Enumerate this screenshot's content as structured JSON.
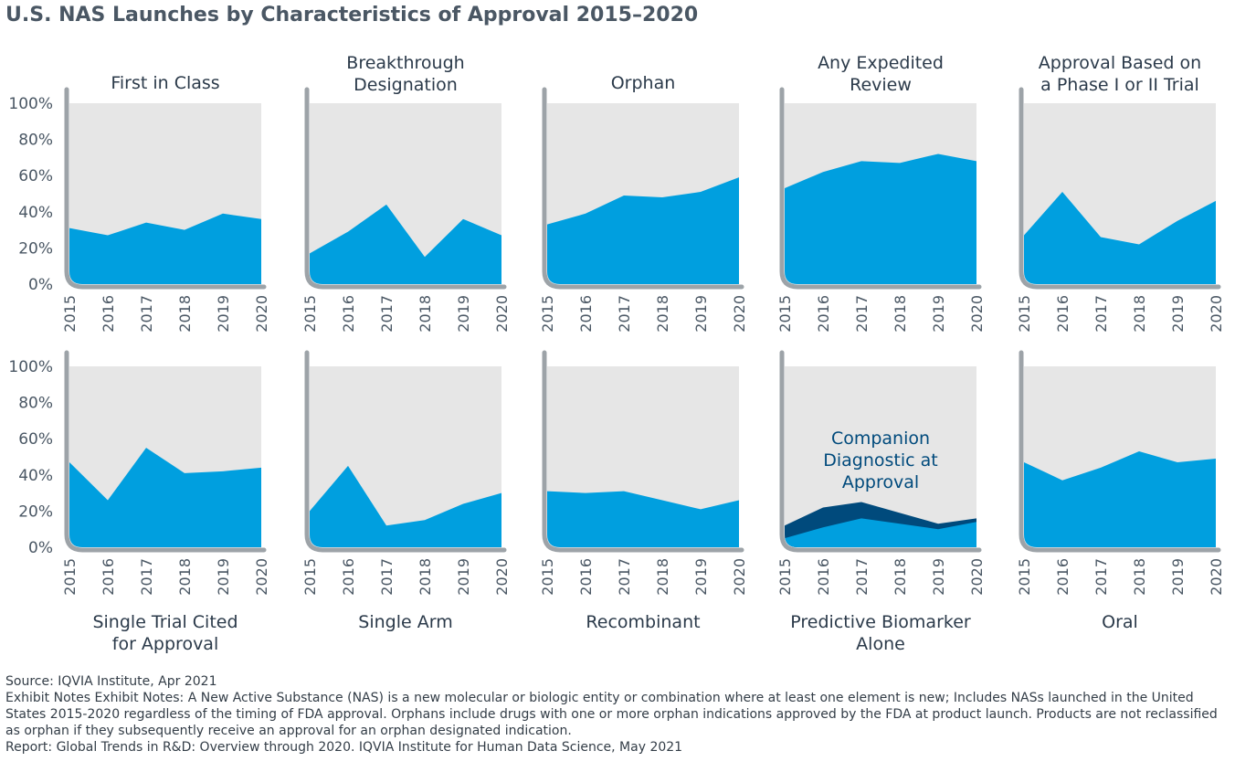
{
  "title": "U.S. NAS Launches by Characteristics of Approval 2015–2020",
  "footer": {
    "source": "Source: IQVIA Institute, Apr 2021",
    "notes": "Exhibit Notes Exhibit Notes: A New Active Substance (NAS) is a new molecular or biologic entity or combination where at least one element is new; Includes NASs launched in the United States 2015-2020 regardless of the timing of FDA approval. Orphans include drugs with one or more orphan indications approved by the FDA at product launch. Products are not reclassified as orphan if they subsequently receive an approval for an orphan designated indication.",
    "report": "Report: Global Trends in R&D: Overview through 2020. IQVIA Institute for Human Data Science, May 2021"
  },
  "colors": {
    "area": "#009fdf",
    "area_dark": "#004a7c",
    "plot_bg": "#e6e6e6",
    "axis": "#9da3a8",
    "text": "#2b3a4a"
  },
  "chart_data": [
    {
      "type": "area",
      "title": [
        "First in Class"
      ],
      "title_position": "top",
      "x": [
        "2015",
        "2016",
        "2017",
        "2018",
        "2019",
        "2020"
      ],
      "yticks": [
        "0%",
        "20%",
        "40%",
        "60%",
        "80%",
        "100%"
      ],
      "ylim": [
        0,
        100
      ],
      "series": [
        {
          "values": [
            31,
            27,
            34,
            30,
            39,
            36
          ]
        }
      ]
    },
    {
      "type": "area",
      "title": [
        "Breakthrough",
        "Designation"
      ],
      "title_position": "top",
      "x": [
        "2015",
        "2016",
        "2017",
        "2018",
        "2019",
        "2020"
      ],
      "yticks": [
        "0%",
        "20%",
        "40%",
        "60%",
        "80%",
        "100%"
      ],
      "ylim": [
        0,
        100
      ],
      "series": [
        {
          "values": [
            17,
            29,
            44,
            15,
            36,
            27
          ]
        }
      ]
    },
    {
      "type": "area",
      "title": [
        "Orphan"
      ],
      "title_position": "top",
      "x": [
        "2015",
        "2016",
        "2017",
        "2018",
        "2019",
        "2020"
      ],
      "yticks": [
        "0%",
        "20%",
        "40%",
        "60%",
        "80%",
        "100%"
      ],
      "ylim": [
        0,
        100
      ],
      "series": [
        {
          "values": [
            33,
            39,
            49,
            48,
            51,
            59
          ]
        }
      ]
    },
    {
      "type": "area",
      "title": [
        "Any Expedited",
        "Review"
      ],
      "title_position": "top",
      "x": [
        "2015",
        "2016",
        "2017",
        "2018",
        "2019",
        "2020"
      ],
      "yticks": [
        "0%",
        "20%",
        "40%",
        "60%",
        "80%",
        "100%"
      ],
      "ylim": [
        0,
        100
      ],
      "series": [
        {
          "values": [
            53,
            62,
            68,
            67,
            72,
            68
          ]
        }
      ]
    },
    {
      "type": "area",
      "title": [
        "Approval Based on",
        "a Phase I or II Trial"
      ],
      "title_position": "top",
      "x": [
        "2015",
        "2016",
        "2017",
        "2018",
        "2019",
        "2020"
      ],
      "yticks": [
        "0%",
        "20%",
        "40%",
        "60%",
        "80%",
        "100%"
      ],
      "ylim": [
        0,
        100
      ],
      "series": [
        {
          "values": [
            27,
            51,
            26,
            22,
            35,
            46
          ]
        }
      ]
    },
    {
      "type": "area",
      "title": [
        "Single Trial Cited",
        "for Approval"
      ],
      "title_position": "bottom",
      "x": [
        "2015",
        "2016",
        "2017",
        "2018",
        "2019",
        "2020"
      ],
      "yticks": [
        "0%",
        "20%",
        "40%",
        "60%",
        "80%",
        "100%"
      ],
      "ylim": [
        0,
        100
      ],
      "series": [
        {
          "values": [
            47,
            26,
            55,
            41,
            42,
            44
          ]
        }
      ]
    },
    {
      "type": "area",
      "title": [
        "Single Arm"
      ],
      "title_position": "bottom",
      "x": [
        "2015",
        "2016",
        "2017",
        "2018",
        "2019",
        "2020"
      ],
      "yticks": [
        "0%",
        "20%",
        "40%",
        "60%",
        "80%",
        "100%"
      ],
      "ylim": [
        0,
        100
      ],
      "series": [
        {
          "values": [
            20,
            45,
            12,
            15,
            24,
            30
          ]
        }
      ]
    },
    {
      "type": "area",
      "title": [
        "Recombinant"
      ],
      "title_position": "bottom",
      "x": [
        "2015",
        "2016",
        "2017",
        "2018",
        "2019",
        "2020"
      ],
      "yticks": [
        "0%",
        "20%",
        "40%",
        "60%",
        "80%",
        "100%"
      ],
      "ylim": [
        0,
        100
      ],
      "series": [
        {
          "values": [
            31,
            30,
            31,
            26,
            21,
            26
          ]
        }
      ]
    },
    {
      "type": "area",
      "title": [
        "Predictive Biomarker",
        "Alone"
      ],
      "title_position": "bottom",
      "x": [
        "2015",
        "2016",
        "2017",
        "2018",
        "2019",
        "2020"
      ],
      "yticks": [
        "0%",
        "20%",
        "40%",
        "60%",
        "80%",
        "100%"
      ],
      "ylim": [
        0,
        100
      ],
      "annotation": [
        "Companion",
        "Diagnostic at",
        "Approval"
      ],
      "series": [
        {
          "name": "Predictive Biomarker Alone",
          "values": [
            5,
            11,
            16,
            13,
            10,
            14
          ]
        },
        {
          "name": "Companion Diagnostic at Approval",
          "values": [
            12,
            22,
            25,
            19,
            13,
            16
          ]
        }
      ]
    },
    {
      "type": "area",
      "title": [
        "Oral"
      ],
      "title_position": "bottom",
      "x": [
        "2015",
        "2016",
        "2017",
        "2018",
        "2019",
        "2020"
      ],
      "yticks": [
        "0%",
        "20%",
        "40%",
        "60%",
        "80%",
        "100%"
      ],
      "ylim": [
        0,
        100
      ],
      "series": [
        {
          "values": [
            47,
            37,
            44,
            53,
            47,
            49
          ]
        }
      ]
    }
  ]
}
